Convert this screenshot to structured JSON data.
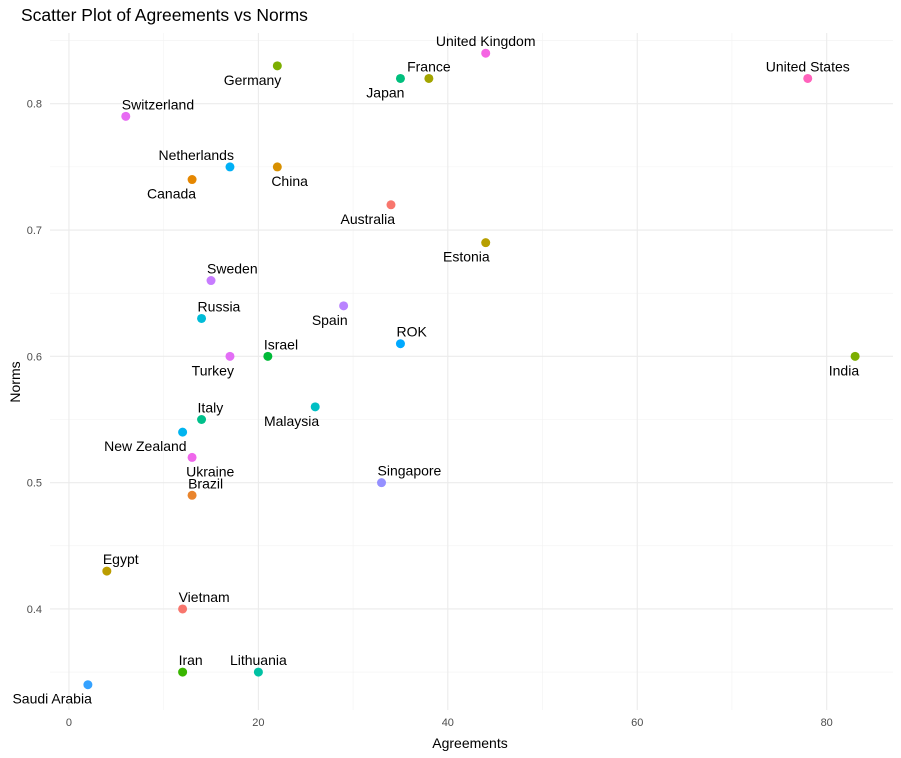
{
  "chart_data": {
    "type": "scatter",
    "title": "Scatter Plot of Agreements vs Norms",
    "xlabel": "Agreements",
    "ylabel": "Norms",
    "xlim": [
      -2,
      87
    ],
    "ylim": [
      0.32,
      0.856
    ],
    "x_ticks": [
      0,
      20,
      40,
      60,
      80
    ],
    "y_ticks": [
      0.4,
      0.5,
      0.6,
      0.7,
      0.8
    ],
    "grid": true,
    "legend": "none",
    "points": [
      {
        "label": "United Kingdom",
        "x": 44,
        "y": 0.84,
        "color": "#F564E3",
        "anchor": "above"
      },
      {
        "label": "Germany",
        "x": 22,
        "y": 0.83,
        "color": "#7CAE00",
        "anchor": "below-left"
      },
      {
        "label": "Japan",
        "x": 35,
        "y": 0.82,
        "color": "#00BF7D",
        "anchor": "below-left"
      },
      {
        "label": "France",
        "x": 38,
        "y": 0.82,
        "color": "#A3A500",
        "anchor": "above"
      },
      {
        "label": "United States",
        "x": 78,
        "y": 0.82,
        "color": "#FF62BC",
        "anchor": "above"
      },
      {
        "label": "Switzerland",
        "x": 6,
        "y": 0.79,
        "color": "#E76BF3",
        "anchor": "above-right"
      },
      {
        "label": "Netherlands",
        "x": 17,
        "y": 0.75,
        "color": "#00B0F6",
        "anchor": "above-left"
      },
      {
        "label": "China",
        "x": 22,
        "y": 0.75,
        "color": "#D89000",
        "anchor": "below-right"
      },
      {
        "label": "Canada",
        "x": 13,
        "y": 0.74,
        "color": "#E58700",
        "anchor": "below-left"
      },
      {
        "label": "Australia",
        "x": 34,
        "y": 0.72,
        "color": "#F8766D",
        "anchor": "below-left"
      },
      {
        "label": "Estonia",
        "x": 44,
        "y": 0.69,
        "color": "#B79F00",
        "anchor": "below-left"
      },
      {
        "label": "Sweden",
        "x": 15,
        "y": 0.66,
        "color": "#C77CFF",
        "anchor": "above-right"
      },
      {
        "label": "Spain",
        "x": 29,
        "y": 0.64,
        "color": "#B983FF",
        "anchor": "below-left"
      },
      {
        "label": "Russia",
        "x": 14,
        "y": 0.63,
        "color": "#00BCD8",
        "anchor": "above-right"
      },
      {
        "label": "ROK",
        "x": 35,
        "y": 0.61,
        "color": "#00A9FF",
        "anchor": "above-right"
      },
      {
        "label": "Turkey",
        "x": 17,
        "y": 0.6,
        "color": "#E36EF6",
        "anchor": "below-left"
      },
      {
        "label": "Israel",
        "x": 21,
        "y": 0.6,
        "color": "#00BA38",
        "anchor": "above-right"
      },
      {
        "label": "India",
        "x": 83,
        "y": 0.6,
        "color": "#7CAE00",
        "anchor": "below-left"
      },
      {
        "label": "Malaysia",
        "x": 26,
        "y": 0.56,
        "color": "#00BFC4",
        "anchor": "below-left"
      },
      {
        "label": "Italy",
        "x": 14,
        "y": 0.55,
        "color": "#00C08B",
        "anchor": "above-right"
      },
      {
        "label": "New Zealand",
        "x": 12,
        "y": 0.54,
        "color": "#00B4EF",
        "anchor": "below-left"
      },
      {
        "label": "Ukraine",
        "x": 13,
        "y": 0.52,
        "color": "#EF67EB",
        "anchor": "below-right"
      },
      {
        "label": "Brazil",
        "x": 13,
        "y": 0.49,
        "color": "#E9842C",
        "anchor": "above-right"
      },
      {
        "label": "Singapore",
        "x": 33,
        "y": 0.5,
        "color": "#9590FF",
        "anchor": "above-right"
      },
      {
        "label": "Egypt",
        "x": 4,
        "y": 0.43,
        "color": "#BB9D00",
        "anchor": "above-right"
      },
      {
        "label": "Vietnam",
        "x": 12,
        "y": 0.4,
        "color": "#F8766D",
        "anchor": "above-right"
      },
      {
        "label": "Iran",
        "x": 12,
        "y": 0.35,
        "color": "#39B600",
        "anchor": "above-right"
      },
      {
        "label": "Lithuania",
        "x": 20,
        "y": 0.35,
        "color": "#00C1A3",
        "anchor": "above"
      },
      {
        "label": "Saudi Arabia",
        "x": 2,
        "y": 0.34,
        "color": "#35A2FF",
        "anchor": "below-left"
      }
    ]
  }
}
